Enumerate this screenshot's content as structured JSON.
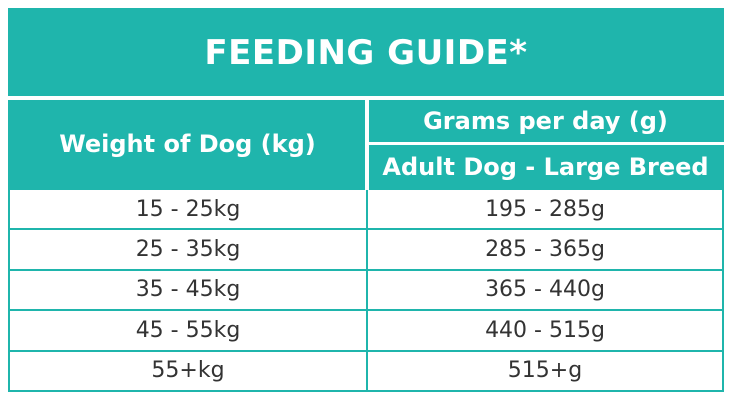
{
  "title": "FEEDING GUIDE*",
  "headers": {
    "weight": "Weight of Dog (kg)",
    "grams": "Grams per day (g)",
    "sub": "Adult Dog - Large Breed"
  },
  "rows": [
    {
      "weight": "15 - 25kg",
      "grams": "195 - 285g"
    },
    {
      "weight": "25 - 35kg",
      "grams": "285 - 365g"
    },
    {
      "weight": "35 - 45kg",
      "grams": "365 - 440g"
    },
    {
      "weight": "45 - 55kg",
      "grams": "440 - 515g"
    },
    {
      "weight": "55+kg",
      "grams": "515+g"
    }
  ],
  "colors": {
    "accent": "#1fb5ac"
  }
}
